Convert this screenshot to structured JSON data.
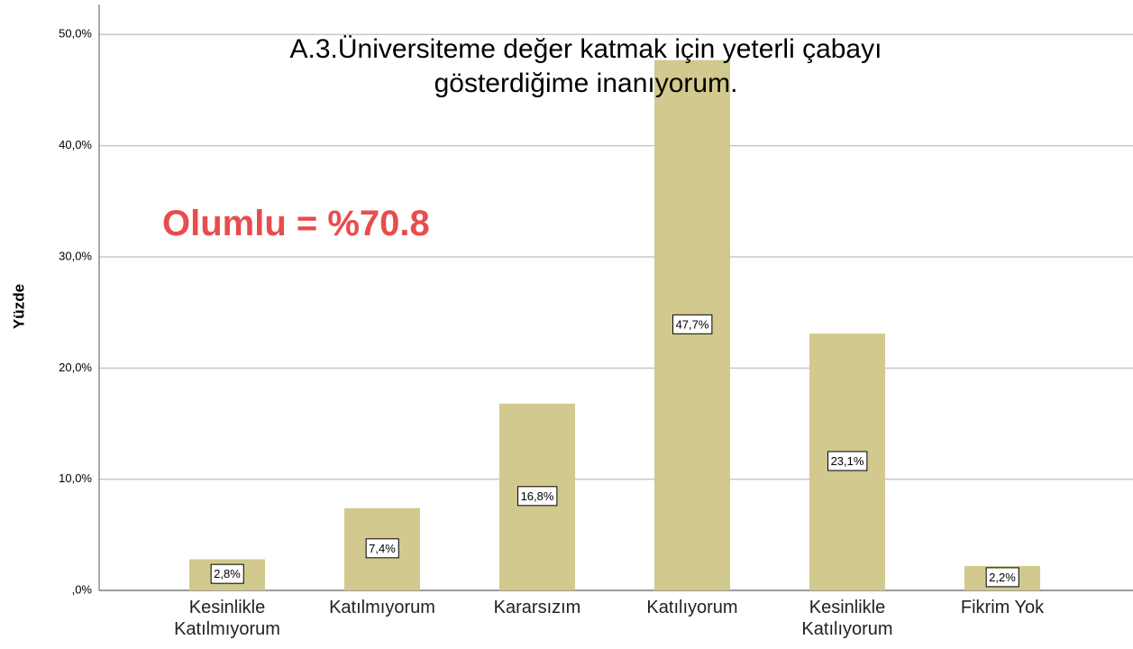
{
  "chart_data": {
    "type": "bar",
    "title": "A.3.Üniversiteme değer katmak için yeterli çabayı gösterdiğime inanıyorum.",
    "annotation": "Olumlu = %70.8",
    "y_label": "Yüzde",
    "categories": [
      "Kesinlikle Katılmıyorum",
      "Katılmıyorum",
      "Kararsızım",
      "Katılıyorum",
      "Kesinlikle Katılıyorum",
      "Fikrim Yok"
    ],
    "values": [
      2.8,
      7.4,
      16.8,
      47.7,
      23.1,
      2.2
    ],
    "value_labels": [
      "2,8%",
      "7,4%",
      "16,8%",
      "47,7%",
      "23,1%",
      "2,2%"
    ],
    "color": "#d1c98d",
    "ylim": [
      0,
      52.7
    ],
    "yticks": [
      {
        "value": 0,
        "label": ",0%"
      },
      {
        "value": 10,
        "label": "10,0%"
      },
      {
        "value": 20,
        "label": "20,0%"
      },
      {
        "value": 30,
        "label": "30,0%"
      },
      {
        "value": 40,
        "label": "40,0%"
      },
      {
        "value": 50,
        "label": "50,0%"
      }
    ],
    "grid": true
  }
}
